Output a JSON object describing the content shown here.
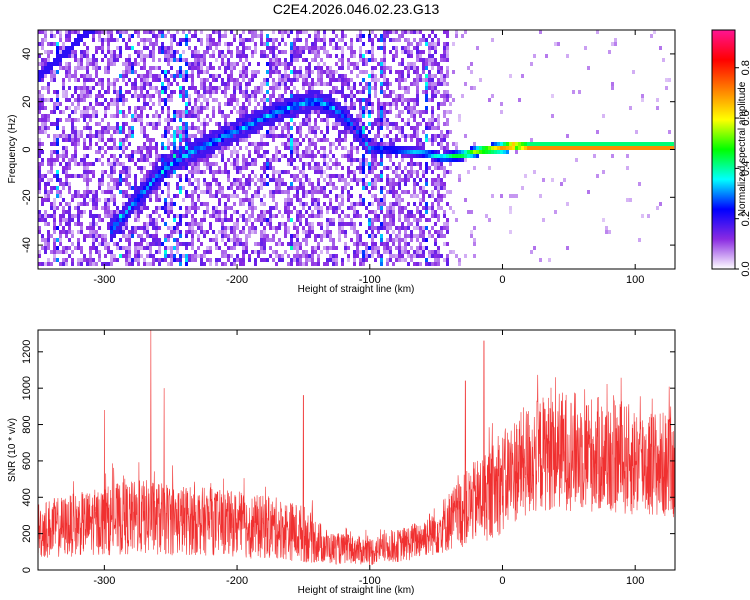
{
  "title": "C2E4.2026.046.02.23.G13",
  "chart_data": [
    {
      "type": "heatmap",
      "xlabel": "Height of straight line (km)",
      "ylabel": "Frequency (Hz)",
      "xlim": [
        -350,
        130
      ],
      "ylim": [
        -50,
        50
      ],
      "x_ticks": [
        -300,
        -200,
        -100,
        0,
        100
      ],
      "y_ticks": [
        -40,
        -20,
        0,
        20,
        40
      ],
      "colorbar": {
        "label": "Normalized spectral amplitude",
        "range": [
          0,
          0.95
        ],
        "ticks": [
          0,
          0.2,
          0.4,
          0.6,
          0.8
        ],
        "tick_labels": [
          "0.0",
          "0.2",
          "0.4",
          "0.6",
          "0.8"
        ],
        "colors": [
          "#ffffff",
          "#8a2be2",
          "#0000ff",
          "#00ffff",
          "#00ff00",
          "#ffff00",
          "#ff8000",
          "#ff0000",
          "#ff1493"
        ]
      },
      "noise_region_x": [
        -350,
        -40
      ],
      "tone_track": {
        "x": [
          -295,
          -280,
          -265,
          -250,
          -235,
          -220,
          -205,
          -190,
          -175,
          -160,
          -150,
          -140,
          -130,
          -120,
          -110,
          -100,
          -80,
          -60,
          -45,
          -30,
          -15,
          0,
          10,
          20,
          130
        ],
        "y": [
          -35,
          -25,
          -15,
          -7,
          -2,
          2,
          6,
          10,
          14,
          17,
          19,
          20,
          18,
          14,
          8,
          0,
          -1,
          -2,
          -4,
          -3,
          -1,
          0,
          1,
          0.5,
          0.5
        ],
        "strength": [
          0.3,
          0.3,
          0.3,
          0.3,
          0.3,
          0.3,
          0.3,
          0.3,
          0.3,
          0.3,
          0.3,
          0.3,
          0.3,
          0.25,
          0.25,
          0.25,
          0.3,
          0.35,
          0.4,
          0.5,
          0.6,
          0.7,
          0.85,
          0.9,
          0.9
        ]
      },
      "secondary_track": {
        "x": [
          -350,
          -330,
          -315,
          -305
        ],
        "y": [
          30,
          40,
          48,
          52
        ]
      }
    },
    {
      "type": "line",
      "xlabel": "Height of straight line (km)",
      "ylabel": "SNR (10 * v/v)",
      "xlim": [
        -350,
        130
      ],
      "ylim": [
        0,
        1320
      ],
      "x_ticks": [
        -300,
        -200,
        -100,
        0,
        100
      ],
      "y_ticks": [
        0,
        200,
        400,
        600,
        800,
        1000,
        1200
      ],
      "color": "#f03030",
      "series": [
        {
          "x": [
            -350,
            -330,
            -310,
            -290,
            -270,
            -250,
            -230,
            -210,
            -190,
            -170,
            -150,
            -130,
            -110,
            -100,
            -90,
            -80,
            -70,
            -60,
            -50,
            -40,
            -30,
            -20,
            -10,
            0,
            10,
            20,
            30,
            40,
            60,
            80,
            100,
            120,
            130
          ],
          "mean": [
            220,
            240,
            260,
            280,
            290,
            280,
            270,
            260,
            240,
            230,
            200,
            120,
            110,
            100,
            120,
            130,
            150,
            180,
            220,
            270,
            320,
            380,
            420,
            480,
            560,
            600,
            640,
            660,
            650,
            620,
            600,
            580,
            560
          ],
          "spread": [
            160,
            170,
            180,
            200,
            210,
            200,
            190,
            180,
            180,
            170,
            160,
            90,
            80,
            80,
            80,
            90,
            100,
            110,
            140,
            170,
            200,
            230,
            260,
            280,
            300,
            320,
            320,
            330,
            330,
            320,
            310,
            300,
            290
          ]
        }
      ],
      "spikes": [
        {
          "x": -265,
          "y": 1320
        },
        {
          "x": -255,
          "y": 1000
        },
        {
          "x": -300,
          "y": 880
        },
        {
          "x": -150,
          "y": 960
        },
        {
          "x": -28,
          "y": 1040
        },
        {
          "x": -14,
          "y": 1260
        },
        {
          "x": 40,
          "y": 1060
        }
      ]
    }
  ]
}
